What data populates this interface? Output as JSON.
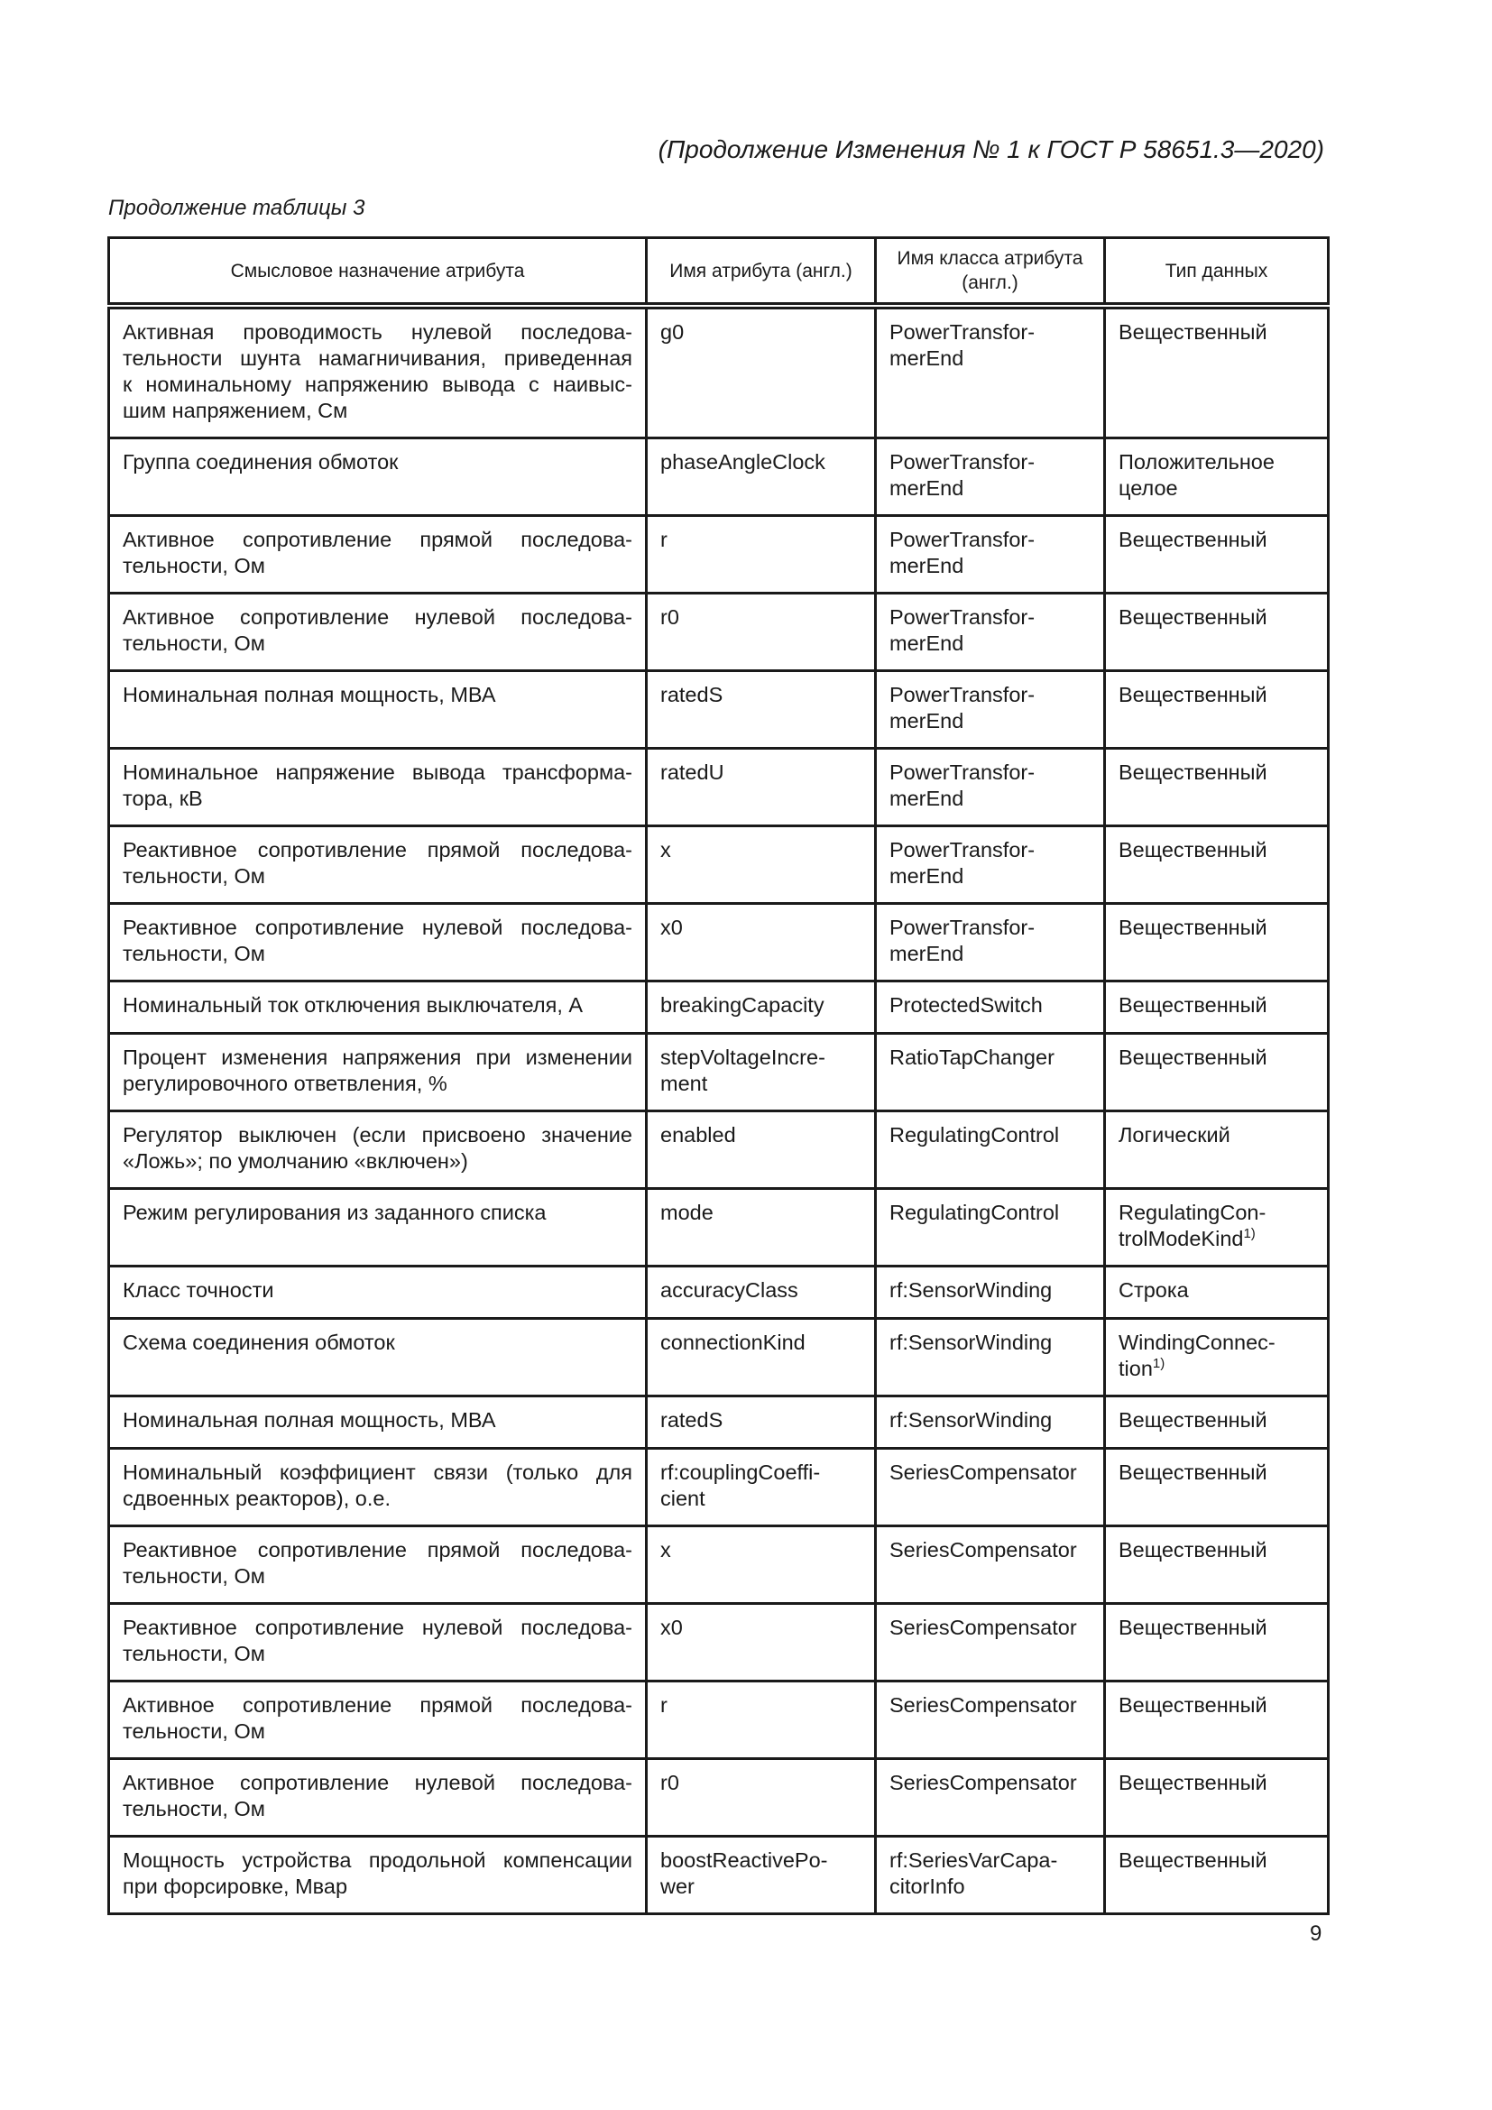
{
  "header": {
    "continuation": "(Продолжение Изменения № 1 к ГОСТ Р 58651.3—2020)"
  },
  "caption": "Продолжение таблицы 3",
  "table": {
    "columns": [
      "Смысловое назначение атрибута",
      "Имя атрибута (англ.)",
      "Имя класса атрибута (англ.)",
      "Тип данных"
    ],
    "rows": [
      {
        "meaning": "Активная проводимость нулевой последова-\nтельности шунта намагничивания, приведенная\nк номинальному напряжению вывода с наивыс-\nшим напряжением, См",
        "attr": "g0",
        "cls": "PowerTransfor-\nmerEnd",
        "type": "Вещественный"
      },
      {
        "meaning": "Группа соединения обмоток",
        "attr": "phaseAngleClock",
        "cls": "PowerTransfor-\nmerEnd",
        "type": "Положительное\nцелое"
      },
      {
        "meaning": "Активное сопротивление прямой последова-\nтельности, Ом",
        "attr": "r",
        "cls": "PowerTransfor-\nmerEnd",
        "type": "Вещественный"
      },
      {
        "meaning": "Активное сопротивление нулевой последова-\nтельности, Ом",
        "attr": "r0",
        "cls": "PowerTransfor-\nmerEnd",
        "type": "Вещественный"
      },
      {
        "meaning": "Номинальная полная мощность, МВА",
        "attr": "ratedS",
        "cls": "PowerTransfor-\nmerEnd",
        "type": "Вещественный"
      },
      {
        "meaning": "Номинальное напряжение вывода трансформа-\nтора, кВ",
        "attr": "ratedU",
        "cls": "PowerTransfor-\nmerEnd",
        "type": "Вещественный"
      },
      {
        "meaning": "Реактивное сопротивление прямой последова-\nтельности, Ом",
        "attr": "x",
        "cls": "PowerTransfor-\nmerEnd",
        "type": "Вещественный"
      },
      {
        "meaning": "Реактивное сопротивление нулевой последова-\nтельности, Ом",
        "attr": "x0",
        "cls": "PowerTransfor-\nmerEnd",
        "type": "Вещественный"
      },
      {
        "meaning": "Номинальный ток отключения выключателя, А",
        "attr": "breakingCapacity",
        "cls": "ProtectedSwitch",
        "type": "Вещественный"
      },
      {
        "meaning": "Процент изменения напряжения при изменении\nрегулировочного ответвления, %",
        "attr": "stepVoltageIncre-\nment",
        "cls": "RatioTapChanger",
        "type": "Вещественный"
      },
      {
        "meaning": "Регулятор выключен (если присвоено значение\n«Ложь»; по умолчанию «включен»)",
        "attr": "enabled",
        "cls": "RegulatingControl",
        "type": "Логический"
      },
      {
        "meaning": "Режим регулирования из заданного списка",
        "attr": "mode",
        "cls": "RegulatingControl",
        "type": "RegulatingCon-\ntrolModeKind",
        "type_sup": "1)"
      },
      {
        "meaning": "Класс точности",
        "attr": "accuracyClass",
        "cls": "rf:SensorWinding",
        "type": "Строка"
      },
      {
        "meaning": "Схема соединения обмоток",
        "attr": "connectionKind",
        "cls": "rf:SensorWinding",
        "type": "WindingConnec-\ntion",
        "type_sup": "1)"
      },
      {
        "meaning": "Номинальная полная мощность, МВА",
        "attr": "ratedS",
        "cls": "rf:SensorWinding",
        "type": "Вещественный"
      },
      {
        "meaning": "Номинальный коэффициент связи (только для\nсдвоенных реакторов), о.е.",
        "attr": "rf:couplingCoeffi-\ncient",
        "cls": "SeriesCompensator",
        "type": "Вещественный"
      },
      {
        "meaning": "Реактивное сопротивление прямой последова-\nтельности, Ом",
        "attr": "x",
        "cls": "SeriesCompensator",
        "type": "Вещественный"
      },
      {
        "meaning": "Реактивное сопротивление нулевой последова-\nтельности, Ом",
        "attr": "x0",
        "cls": "SeriesCompensator",
        "type": "Вещественный"
      },
      {
        "meaning": "Активное сопротивление прямой последова-\nтельности, Ом",
        "attr": "r",
        "cls": "SeriesCompensator",
        "type": "Вещественный"
      },
      {
        "meaning": "Активное сопротивление нулевой последова-\nтельности, Ом",
        "attr": "r0",
        "cls": "SeriesCompensator",
        "type": "Вещественный"
      },
      {
        "meaning": "Мощность устройства продольной компенсации\nпри форсировке, Мвар",
        "attr": "boostReactivePo-\nwer",
        "cls": "rf:SeriesVarCapa-\ncitorInfo",
        "type": "Вещественный"
      }
    ]
  },
  "page_number": "9"
}
